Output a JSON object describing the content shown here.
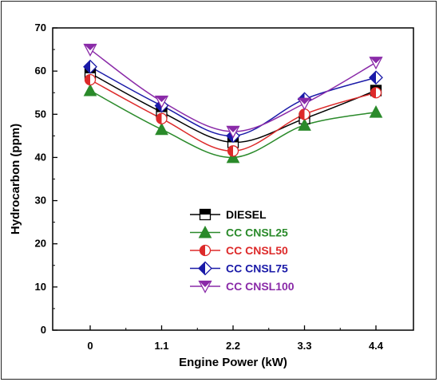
{
  "chart_data": {
    "type": "line",
    "categories": [
      "0",
      "1.1",
      "2.2",
      "3.3",
      "4.4"
    ],
    "x": [
      0,
      1.1,
      2.2,
      3.3,
      4.4
    ],
    "xlabel": "Engine Power (kW)",
    "ylabel": "Hydrocarbon (ppm)",
    "ylim": [
      0,
      70
    ],
    "yticks": [
      0,
      10,
      20,
      30,
      40,
      50,
      60,
      70
    ],
    "grid": false,
    "legend": "center-bottom",
    "series": [
      {
        "name": "DIESEL",
        "color": "#000000",
        "marker": "half-square",
        "values": [
          59.5,
          50.5,
          43.5,
          49,
          55.5
        ]
      },
      {
        "name": "CC CNSL25",
        "color": "#2a8a2a",
        "marker": "triangle-up",
        "values": [
          55.5,
          46.5,
          40,
          47.5,
          50.5
        ]
      },
      {
        "name": "CC CNSL50",
        "color": "#dd2a2a",
        "marker": "half-circle",
        "values": [
          58,
          49,
          41.5,
          50,
          55
        ]
      },
      {
        "name": "CC CNSL75",
        "color": "#1a1aa8",
        "marker": "half-diamond",
        "values": [
          61,
          52,
          45,
          53.5,
          58.5
        ]
      },
      {
        "name": "CC CNSL100",
        "color": "#8a2aa8",
        "marker": "triangle-down",
        "values": [
          65,
          53,
          46,
          52.5,
          62
        ]
      }
    ]
  }
}
